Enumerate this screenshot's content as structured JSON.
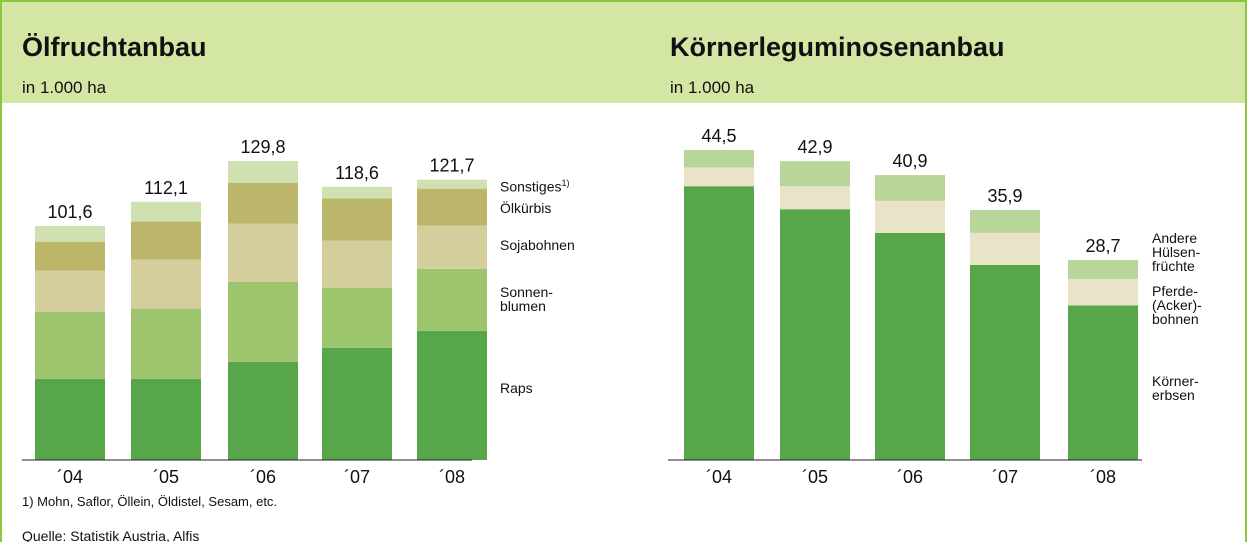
{
  "chart_data": [
    {
      "type": "stacked_bar",
      "title": "Ölfruchtanbau",
      "subtitle": "in 1.000 ha",
      "categories": [
        "´04",
        "´05",
        "´06",
        "´07",
        "´08"
      ],
      "series": [
        {
          "name": "Raps",
          "color": "#58a64a",
          "values": [
            35.2,
            35.2,
            42.6,
            48.7,
            56.1
          ]
        },
        {
          "name": "Sonnen-\nblumen",
          "color": "#9cc56e",
          "values": [
            29.1,
            30.5,
            34.8,
            26.1,
            26.9
          ]
        },
        {
          "name": "Sojabohnen",
          "color": "#d4ce9d",
          "values": [
            17.9,
            21.3,
            25.2,
            20.4,
            18.7
          ]
        },
        {
          "name": "Ölkürbis",
          "color": "#bcb66a",
          "values": [
            12.6,
            16.5,
            17.8,
            18.3,
            16.1
          ]
        },
        {
          "name": "Sonstiges",
          "name_note": "1)",
          "color": "#cfe1b1",
          "values": [
            6.8,
            8.6,
            9.4,
            5.1,
            3.9
          ]
        }
      ],
      "totals": [
        101.6,
        112.1,
        129.8,
        118.6,
        121.7
      ],
      "total_labels": [
        "101,6",
        "112,1",
        "129,8",
        "118,6",
        "121,7"
      ]
    },
    {
      "type": "stacked_bar",
      "title": "Körnerleguminosenanbau",
      "subtitle": "in 1.000 ha",
      "categories": [
        "´04",
        "´05",
        "´06",
        "´07",
        "´08"
      ],
      "series": [
        {
          "name": "Körner-\nerbsen",
          "color": "#58a64a",
          "values": [
            39.3,
            36.0,
            32.6,
            28.0,
            22.2
          ]
        },
        {
          "name": "Pferde-\n(Acker)-\nbohnen",
          "color": "#e9e3c8",
          "values": [
            2.7,
            3.3,
            4.6,
            4.6,
            3.8
          ]
        },
        {
          "name": "Andere\nHülsen-\nfrüchte",
          "color": "#b9d69a",
          "values": [
            2.5,
            3.6,
            3.7,
            3.3,
            2.7
          ]
        }
      ],
      "totals": [
        44.5,
        42.9,
        40.9,
        35.9,
        28.7
      ],
      "total_labels": [
        "44,5",
        "42,9",
        "40,9",
        "35,9",
        "28,7"
      ]
    }
  ],
  "footnote": "1) Mohn, Saflor, Öllein, Öldistel, Sesam, etc.",
  "source": "Quelle: Statistik Austria, Alfis"
}
